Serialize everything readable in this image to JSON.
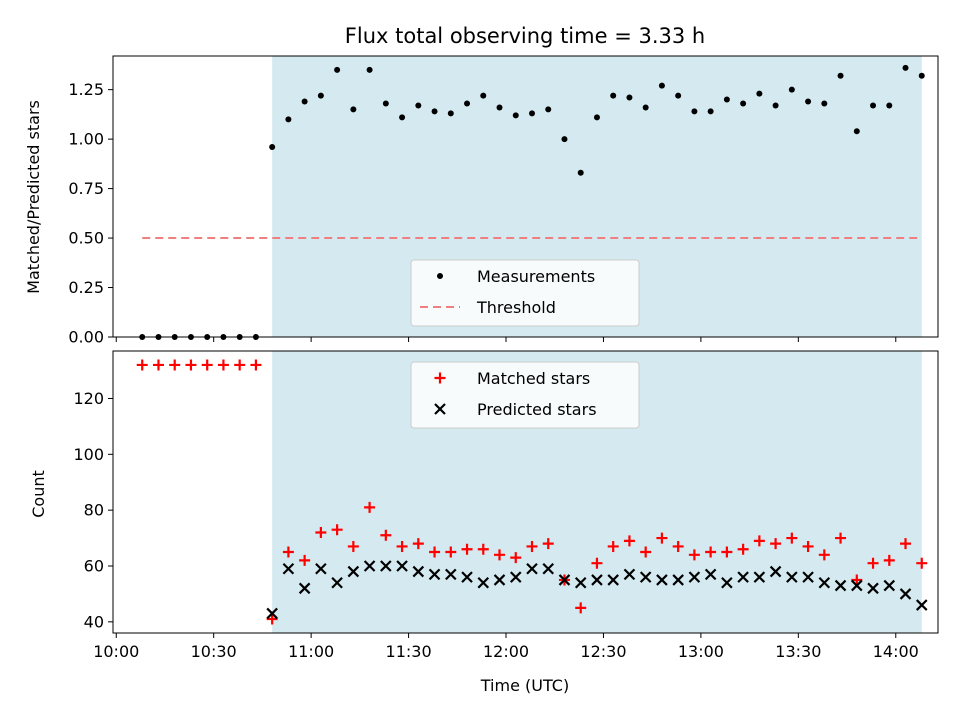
{
  "chart_data": [
    {
      "type": "scatter",
      "title": "Flux total observing time = 3.33 h",
      "ylabel": "Matched/Predicted stars",
      "xlabel": "",
      "ylim": [
        0,
        1.42
      ],
      "yticks": [
        "0.00",
        "0.25",
        "0.50",
        "0.75",
        "1.00",
        "1.25"
      ],
      "highlight_span": {
        "start": "10:48",
        "end": "14:08",
        "color": "#d4eaf0"
      },
      "legend": {
        "placement": "bottom-center",
        "entries": [
          "Measurements",
          "Threshold"
        ]
      },
      "series": [
        {
          "name": "Measurements",
          "marker": "dot",
          "color": "#000000",
          "points": [
            [
              "10:08",
              0
            ],
            [
              "10:13",
              0
            ],
            [
              "10:18",
              0
            ],
            [
              "10:23",
              0
            ],
            [
              "10:28",
              0
            ],
            [
              "10:33",
              0
            ],
            [
              "10:38",
              0
            ],
            [
              "10:43",
              0
            ],
            [
              "10:48",
              0.96
            ],
            [
              "10:53",
              1.1
            ],
            [
              "10:58",
              1.19
            ],
            [
              "11:03",
              1.22
            ],
            [
              "11:08",
              1.35
            ],
            [
              "11:13",
              1.15
            ],
            [
              "11:18",
              1.35
            ],
            [
              "11:23",
              1.18
            ],
            [
              "11:28",
              1.11
            ],
            [
              "11:33",
              1.17
            ],
            [
              "11:38",
              1.14
            ],
            [
              "11:43",
              1.13
            ],
            [
              "11:48",
              1.18
            ],
            [
              "11:53",
              1.22
            ],
            [
              "11:58",
              1.16
            ],
            [
              "12:03",
              1.12
            ],
            [
              "12:08",
              1.13
            ],
            [
              "12:13",
              1.15
            ],
            [
              "12:18",
              1.0
            ],
            [
              "12:23",
              0.83
            ],
            [
              "12:28",
              1.11
            ],
            [
              "12:33",
              1.22
            ],
            [
              "12:38",
              1.21
            ],
            [
              "12:43",
              1.16
            ],
            [
              "12:48",
              1.27
            ],
            [
              "12:53",
              1.22
            ],
            [
              "12:58",
              1.14
            ],
            [
              "13:03",
              1.14
            ],
            [
              "13:08",
              1.2
            ],
            [
              "13:13",
              1.18
            ],
            [
              "13:18",
              1.23
            ],
            [
              "13:23",
              1.17
            ],
            [
              "13:28",
              1.25
            ],
            [
              "13:33",
              1.19
            ],
            [
              "13:38",
              1.18
            ],
            [
              "13:43",
              1.32
            ],
            [
              "13:48",
              1.04
            ],
            [
              "13:53",
              1.17
            ],
            [
              "13:58",
              1.17
            ],
            [
              "14:03",
              1.36
            ],
            [
              "14:08",
              1.32
            ]
          ]
        },
        {
          "name": "Threshold",
          "type": "line",
          "style": "dashed",
          "color": "#f08080",
          "points": [
            [
              "10:08",
              0.5
            ],
            [
              "14:08",
              0.5
            ]
          ]
        }
      ]
    },
    {
      "type": "scatter",
      "title": "",
      "ylabel": "Count",
      "xlabel": "Time (UTC)",
      "ylim": [
        36,
        137
      ],
      "yticks": [
        "40",
        "60",
        "80",
        "100",
        "120"
      ],
      "xticks": [
        "10:00",
        "10:30",
        "11:00",
        "11:30",
        "12:00",
        "12:30",
        "13:00",
        "13:30",
        "14:00"
      ],
      "highlight_span": {
        "start": "10:48",
        "end": "14:08",
        "color": "#d4eaf0"
      },
      "legend": {
        "placement": "top-center",
        "entries": [
          "Matched stars",
          "Predicted stars"
        ]
      },
      "series": [
        {
          "name": "Matched stars",
          "marker": "plus",
          "color": "#ff0000",
          "points": [
            [
              "10:08",
              132
            ],
            [
              "10:13",
              132
            ],
            [
              "10:18",
              132
            ],
            [
              "10:23",
              132
            ],
            [
              "10:28",
              132
            ],
            [
              "10:33",
              132
            ],
            [
              "10:38",
              132
            ],
            [
              "10:43",
              132
            ],
            [
              "10:48",
              41
            ],
            [
              "10:53",
              65
            ],
            [
              "10:58",
              62
            ],
            [
              "11:03",
              72
            ],
            [
              "11:08",
              73
            ],
            [
              "11:13",
              67
            ],
            [
              "11:18",
              81
            ],
            [
              "11:23",
              71
            ],
            [
              "11:28",
              67
            ],
            [
              "11:33",
              68
            ],
            [
              "11:38",
              65
            ],
            [
              "11:43",
              65
            ],
            [
              "11:48",
              66
            ],
            [
              "11:53",
              66
            ],
            [
              "11:58",
              64
            ],
            [
              "12:03",
              63
            ],
            [
              "12:08",
              67
            ],
            [
              "12:13",
              68
            ],
            [
              "12:18",
              55
            ],
            [
              "12:23",
              45
            ],
            [
              "12:28",
              61
            ],
            [
              "12:33",
              67
            ],
            [
              "12:38",
              69
            ],
            [
              "12:43",
              65
            ],
            [
              "12:48",
              70
            ],
            [
              "12:53",
              67
            ],
            [
              "12:58",
              64
            ],
            [
              "13:03",
              65
            ],
            [
              "13:08",
              65
            ],
            [
              "13:13",
              66
            ],
            [
              "13:18",
              69
            ],
            [
              "13:23",
              68
            ],
            [
              "13:28",
              70
            ],
            [
              "13:33",
              67
            ],
            [
              "13:38",
              64
            ],
            [
              "13:43",
              70
            ],
            [
              "13:48",
              55
            ],
            [
              "13:53",
              61
            ],
            [
              "13:58",
              62
            ],
            [
              "14:03",
              68
            ],
            [
              "14:08",
              61
            ]
          ]
        },
        {
          "name": "Predicted stars",
          "marker": "x",
          "color": "#000000",
          "points": [
            [
              "10:48",
              43
            ],
            [
              "10:53",
              59
            ],
            [
              "10:58",
              52
            ],
            [
              "11:03",
              59
            ],
            [
              "11:08",
              54
            ],
            [
              "11:13",
              58
            ],
            [
              "11:18",
              60
            ],
            [
              "11:23",
              60
            ],
            [
              "11:28",
              60
            ],
            [
              "11:33",
              58
            ],
            [
              "11:38",
              57
            ],
            [
              "11:43",
              57
            ],
            [
              "11:48",
              56
            ],
            [
              "11:53",
              54
            ],
            [
              "11:58",
              55
            ],
            [
              "12:03",
              56
            ],
            [
              "12:08",
              59
            ],
            [
              "12:13",
              59
            ],
            [
              "12:18",
              55
            ],
            [
              "12:23",
              54
            ],
            [
              "12:28",
              55
            ],
            [
              "12:33",
              55
            ],
            [
              "12:38",
              57
            ],
            [
              "12:43",
              56
            ],
            [
              "12:48",
              55
            ],
            [
              "12:53",
              55
            ],
            [
              "12:58",
              56
            ],
            [
              "13:03",
              57
            ],
            [
              "13:08",
              54
            ],
            [
              "13:13",
              56
            ],
            [
              "13:18",
              56
            ],
            [
              "13:23",
              58
            ],
            [
              "13:28",
              56
            ],
            [
              "13:33",
              56
            ],
            [
              "13:38",
              54
            ],
            [
              "13:43",
              53
            ],
            [
              "13:48",
              53
            ],
            [
              "13:53",
              52
            ],
            [
              "13:58",
              53
            ],
            [
              "14:03",
              50
            ],
            [
              "14:08",
              46
            ]
          ]
        }
      ]
    }
  ]
}
